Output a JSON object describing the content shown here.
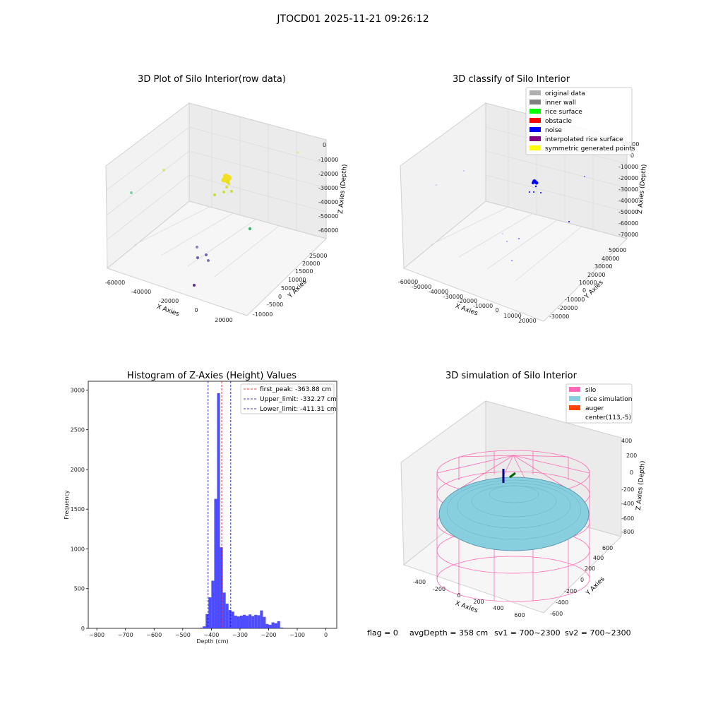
{
  "suptitle": "JTOCD01 2025-11-21 09:26:12",
  "colors": {
    "pane": "#f2f2f2",
    "grid": "#d8d8d8",
    "hist_bar": "#3a3aff",
    "first_peak": "#ff0000",
    "limits": "#0000aa",
    "silo": "#ff69b4",
    "rice": "#87cedf",
    "auger": "#ff4500"
  },
  "panels": {
    "raw": {
      "title": "3D Plot of Silo Interior(row data)",
      "xlabel": "X Axies",
      "ylabel": "Y Axies",
      "zlabel": "Z Axies (Depth)",
      "xticks": [
        "-60000",
        "-40000",
        "-20000",
        "0",
        "20000"
      ],
      "yticks": [
        "-10000",
        "-5000",
        "0",
        "5000",
        "10000",
        "15000",
        "20000",
        "25000"
      ],
      "zticks": [
        "0",
        "-10000",
        "-20000",
        "-30000",
        "-40000",
        "-50000",
        "-60000"
      ]
    },
    "classify": {
      "title": "3D classify of Silo Interior",
      "xlabel": "X Axies",
      "ylabel": "Y Axies",
      "zlabel": "Z Axies (Depth)",
      "xticks": [
        "-60000",
        "-50000",
        "-40000",
        "-30000",
        "-20000",
        "-10000",
        "0",
        "10000",
        "20000"
      ],
      "yticks": [
        "-30000",
        "-20000",
        "-10000",
        "0",
        "10000",
        "20000",
        "30000",
        "40000",
        "50000"
      ],
      "zticks": [
        "10000",
        "0",
        "-10000",
        "-20000",
        "-30000",
        "-40000",
        "-50000",
        "-60000",
        "-70000"
      ],
      "legend": [
        {
          "label": "original data",
          "color": "#b0b0b0"
        },
        {
          "label": "inner wall",
          "color": "#808080"
        },
        {
          "label": "rice surface",
          "color": "#00ff00"
        },
        {
          "label": "obstacle",
          "color": "#ff0000"
        },
        {
          "label": "noise",
          "color": "#0000ff"
        },
        {
          "label": "interpolated rice surface",
          "color": "#800080"
        },
        {
          "label": "symmetric generated points",
          "color": "#ffff00"
        }
      ]
    },
    "sim": {
      "title": "3D simulation of Silo Interior",
      "xlabel": "X Axies",
      "ylabel": "Y Axies",
      "zlabel": "Z Axies (Depth)",
      "xticks": [
        "-400",
        "-200",
        "0",
        "200",
        "400",
        "600"
      ],
      "yticks": [
        "-600",
        "-400",
        "-200",
        "0",
        "200",
        "400",
        "600"
      ],
      "zticks": [
        "400",
        "200",
        "0",
        "-200",
        "-400",
        "-600",
        "-800"
      ],
      "legend": [
        {
          "label": "silo",
          "color": "#ff69b4"
        },
        {
          "label": "rice simulation",
          "color": "#87cedf"
        },
        {
          "label": "auger",
          "color": "#ff4500"
        },
        {
          "label": "center(113,-5)",
          "color": ""
        }
      ]
    }
  },
  "chart_data": {
    "type": "bar",
    "title": "Histogram of Z-Axies (Height) Values",
    "xlabel": "Depth (cm)",
    "ylabel": "Frequency",
    "xlim": [
      -830,
      38
    ],
    "ylim": [
      0,
      3110
    ],
    "bin_width": 10,
    "xticks": [
      -800,
      -700,
      -600,
      -500,
      -400,
      -300,
      -200,
      -100,
      0
    ],
    "yticks": [
      0,
      500,
      1000,
      1500,
      2000,
      2500,
      3000
    ],
    "bins": [
      {
        "x": -440,
        "y": 8
      },
      {
        "x": -430,
        "y": 25
      },
      {
        "x": -420,
        "y": 180
      },
      {
        "x": -410,
        "y": 390
      },
      {
        "x": -400,
        "y": 600
      },
      {
        "x": -390,
        "y": 1630
      },
      {
        "x": -380,
        "y": 2960
      },
      {
        "x": -370,
        "y": 1020
      },
      {
        "x": -360,
        "y": 450
      },
      {
        "x": -350,
        "y": 310
      },
      {
        "x": -340,
        "y": 230
      },
      {
        "x": -330,
        "y": 210
      },
      {
        "x": -320,
        "y": 160
      },
      {
        "x": -310,
        "y": 150
      },
      {
        "x": -300,
        "y": 160
      },
      {
        "x": -290,
        "y": 170
      },
      {
        "x": -280,
        "y": 160
      },
      {
        "x": -270,
        "y": 175
      },
      {
        "x": -260,
        "y": 155
      },
      {
        "x": -250,
        "y": 170
      },
      {
        "x": -240,
        "y": 165
      },
      {
        "x": -230,
        "y": 225
      },
      {
        "x": -220,
        "y": 145
      },
      {
        "x": -210,
        "y": 55
      },
      {
        "x": -200,
        "y": 45
      },
      {
        "x": -190,
        "y": 75
      },
      {
        "x": -180,
        "y": 65
      },
      {
        "x": -170,
        "y": 90
      },
      {
        "x": -160,
        "y": 10
      }
    ],
    "lines": [
      {
        "label": "first_peak: -363.88 cm",
        "x": -363.88,
        "color": "#ff0000"
      },
      {
        "label": "Upper_limit: -332.27 cm",
        "x": -332.27,
        "color": "#0000aa"
      },
      {
        "label": "Lower_limit: -411.31 cm",
        "x": -411.31,
        "color": "#0000aa"
      }
    ]
  },
  "status": {
    "flag": "flag = 0",
    "avg": "avgDepth = 358 cm",
    "sv1": "sv1 = 700~2300",
    "sv2": "sv2 = 700~2300"
  }
}
